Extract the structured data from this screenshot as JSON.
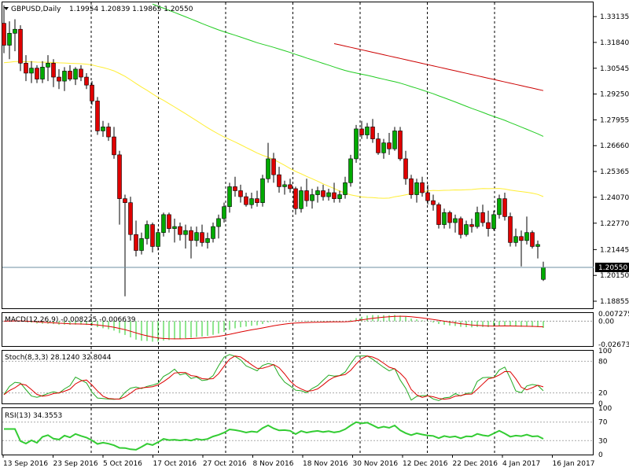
{
  "header": {
    "symbol": "GBPUSD,Daily",
    "ohlc": "1.19954 1.20839 1.19865 1.20550",
    "macd": "MACD(12,26,9) -0.008225 -0.006639",
    "stoch": "Stoch(8,3,3) 28.1240 32.8044",
    "rsi": "RSI(13) 34.3553"
  },
  "colors": {
    "bull": "#00aa00",
    "bear": "#e00000",
    "ma_red": "#cc0000",
    "ma_green": "#22cc22",
    "ma_yellow": "#ffee33",
    "stoch_main": "#22aa22",
    "stoch_signal": "#dd0000",
    "rsi_line": "#33cc33",
    "macd_signal": "#dd0000",
    "macd_hist": "#22cc22"
  },
  "chart_data": [
    {
      "type": "candlestick",
      "title": "GBPUSD,Daily",
      "y_ticks": [
        "1.33135",
        "1.31840",
        "1.30545",
        "1.29250",
        "1.27955",
        "1.26660",
        "1.25365",
        "1.24070",
        "1.22770",
        "1.21445",
        "1.20150",
        "1.18855"
      ],
      "ylim": [
        1.185,
        1.3385
      ],
      "current_price": "1.20550",
      "x_ticks": [
        "13 Sep 2016",
        "23 Sep 2016",
        "5 Oct 2016",
        "17 Oct 2016",
        "27 Oct 2016",
        "8 Nov 2016",
        "18 Nov 2016",
        "30 Nov 2016",
        "12 Dec 2016",
        "22 Dec 2016",
        "4 Jan 2017",
        "16 Jan 2017"
      ],
      "candles": [
        [
          1.328,
          1.337,
          1.313,
          1.317
        ],
        [
          1.317,
          1.329,
          1.31,
          1.323
        ],
        [
          1.323,
          1.33,
          1.314,
          1.325
        ],
        [
          1.325,
          1.327,
          1.304,
          1.308
        ],
        [
          1.308,
          1.312,
          1.299,
          1.303
        ],
        [
          1.303,
          1.309,
          1.298,
          1.3055
        ],
        [
          1.3055,
          1.307,
          1.298,
          1.3
        ],
        [
          1.3,
          1.309,
          1.298,
          1.306
        ],
        [
          1.306,
          1.312,
          1.299,
          1.308
        ],
        [
          1.308,
          1.31,
          1.296,
          1.301
        ],
        [
          1.301,
          1.305,
          1.295,
          1.299
        ],
        [
          1.299,
          1.306,
          1.294,
          1.304
        ],
        [
          1.304,
          1.307,
          1.299,
          1.3
        ],
        [
          1.3,
          1.306,
          1.297,
          1.305
        ],
        [
          1.305,
          1.307,
          1.299,
          1.301
        ],
        [
          1.301,
          1.303,
          1.295,
          1.297
        ],
        [
          1.297,
          1.299,
          1.287,
          1.289
        ],
        [
          1.289,
          1.291,
          1.272,
          1.274
        ],
        [
          1.274,
          1.279,
          1.271,
          1.276
        ],
        [
          1.276,
          1.278,
          1.269,
          1.271
        ],
        [
          1.271,
          1.276,
          1.26,
          1.262
        ],
        [
          1.262,
          1.264,
          1.227,
          1.24
        ],
        [
          1.24,
          1.242,
          1.191,
          1.238
        ],
        [
          1.238,
          1.241,
          1.219,
          1.222
        ],
        [
          1.222,
          1.229,
          1.211,
          1.214
        ],
        [
          1.214,
          1.223,
          1.212,
          1.22
        ],
        [
          1.22,
          1.229,
          1.217,
          1.227
        ],
        [
          1.227,
          1.228,
          1.213,
          1.216
        ],
        [
          1.216,
          1.225,
          1.214,
          1.223
        ],
        [
          1.223,
          1.233,
          1.221,
          1.232
        ],
        [
          1.232,
          1.233,
          1.223,
          1.225
        ],
        [
          1.225,
          1.23,
          1.218,
          1.226
        ],
        [
          1.226,
          1.228,
          1.219,
          1.222
        ],
        [
          1.222,
          1.227,
          1.215,
          1.224
        ],
        [
          1.224,
          1.226,
          1.21,
          1.219
        ],
        [
          1.219,
          1.226,
          1.216,
          1.223
        ],
        [
          1.223,
          1.227,
          1.216,
          1.218
        ],
        [
          1.218,
          1.223,
          1.215,
          1.22
        ],
        [
          1.22,
          1.228,
          1.218,
          1.226
        ],
        [
          1.226,
          1.232,
          1.22,
          1.23
        ],
        [
          1.23,
          1.238,
          1.228,
          1.236
        ],
        [
          1.236,
          1.248,
          1.233,
          1.246
        ],
        [
          1.246,
          1.251,
          1.241,
          1.244
        ],
        [
          1.244,
          1.247,
          1.238,
          1.241
        ],
        [
          1.241,
          1.243,
          1.236,
          1.237
        ],
        [
          1.237,
          1.243,
          1.235,
          1.24
        ],
        [
          1.24,
          1.244,
          1.236,
          1.238
        ],
        [
          1.238,
          1.252,
          1.236,
          1.25
        ],
        [
          1.25,
          1.268,
          1.248,
          1.26
        ],
        [
          1.26,
          1.263,
          1.248,
          1.252
        ],
        [
          1.252,
          1.256,
          1.243,
          1.246
        ],
        [
          1.246,
          1.249,
          1.242,
          1.247
        ],
        [
          1.247,
          1.25,
          1.243,
          1.245
        ],
        [
          1.245,
          1.246,
          1.232,
          1.235
        ],
        [
          1.235,
          1.246,
          1.233,
          1.244
        ],
        [
          1.244,
          1.25,
          1.236,
          1.239
        ],
        [
          1.239,
          1.245,
          1.235,
          1.242
        ],
        [
          1.242,
          1.246,
          1.238,
          1.244
        ],
        [
          1.244,
          1.247,
          1.239,
          1.241
        ],
        [
          1.241,
          1.245,
          1.239,
          1.243
        ],
        [
          1.243,
          1.248,
          1.238,
          1.24
        ],
        [
          1.24,
          1.244,
          1.238,
          1.242
        ],
        [
          1.242,
          1.251,
          1.24,
          1.248
        ],
        [
          1.248,
          1.262,
          1.246,
          1.26
        ],
        [
          1.26,
          1.277,
          1.258,
          1.275
        ],
        [
          1.275,
          1.279,
          1.27,
          1.272
        ],
        [
          1.272,
          1.278,
          1.27,
          1.276
        ],
        [
          1.276,
          1.28,
          1.268,
          1.27
        ],
        [
          1.27,
          1.273,
          1.262,
          1.263
        ],
        [
          1.263,
          1.27,
          1.26,
          1.268
        ],
        [
          1.268,
          1.273,
          1.262,
          1.265
        ],
        [
          1.265,
          1.276,
          1.264,
          1.274
        ],
        [
          1.274,
          1.276,
          1.259,
          1.26
        ],
        [
          1.26,
          1.264,
          1.247,
          1.25
        ],
        [
          1.25,
          1.252,
          1.24,
          1.242
        ],
        [
          1.242,
          1.25,
          1.238,
          1.248
        ],
        [
          1.248,
          1.251,
          1.241,
          1.243
        ],
        [
          1.243,
          1.247,
          1.237,
          1.239
        ],
        [
          1.239,
          1.242,
          1.234,
          1.237
        ],
        [
          1.237,
          1.238,
          1.225,
          1.227
        ],
        [
          1.227,
          1.235,
          1.225,
          1.233
        ],
        [
          1.233,
          1.234,
          1.225,
          1.228
        ],
        [
          1.228,
          1.232,
          1.223,
          1.23
        ],
        [
          1.23,
          1.231,
          1.22,
          1.222
        ],
        [
          1.222,
          1.229,
          1.221,
          1.227
        ],
        [
          1.227,
          1.23,
          1.223,
          1.226
        ],
        [
          1.226,
          1.236,
          1.225,
          1.233
        ],
        [
          1.233,
          1.237,
          1.226,
          1.228
        ],
        [
          1.228,
          1.234,
          1.221,
          1.225
        ],
        [
          1.225,
          1.234,
          1.224,
          1.232
        ],
        [
          1.232,
          1.242,
          1.23,
          1.24
        ],
        [
          1.24,
          1.243,
          1.229,
          1.231
        ],
        [
          1.231,
          1.233,
          1.216,
          1.218
        ],
        [
          1.218,
          1.225,
          1.216,
          1.221
        ],
        [
          1.221,
          1.224,
          1.206,
          1.219
        ],
        [
          1.219,
          1.231,
          1.217,
          1.223
        ],
        [
          1.223,
          1.224,
          1.215,
          1.216
        ],
        [
          1.216,
          1.219,
          1.21,
          1.217
        ],
        [
          1.1995,
          1.2084,
          1.1987,
          1.2055
        ]
      ]
    },
    {
      "type": "line",
      "title": "MACD(12,26,9) -0.008225 -0.006639",
      "y_ticks": [
        "0.007275",
        "0.00",
        "-0.026737"
      ]
    },
    {
      "type": "line",
      "title": "Stoch(8,3,3) 28.1240 32.8044",
      "y_ticks": [
        "100",
        "80",
        "20",
        "0"
      ]
    },
    {
      "type": "line",
      "title": "RSI(13) 34.3553",
      "y_ticks": [
        "100",
        "70",
        "30",
        "0"
      ]
    }
  ]
}
